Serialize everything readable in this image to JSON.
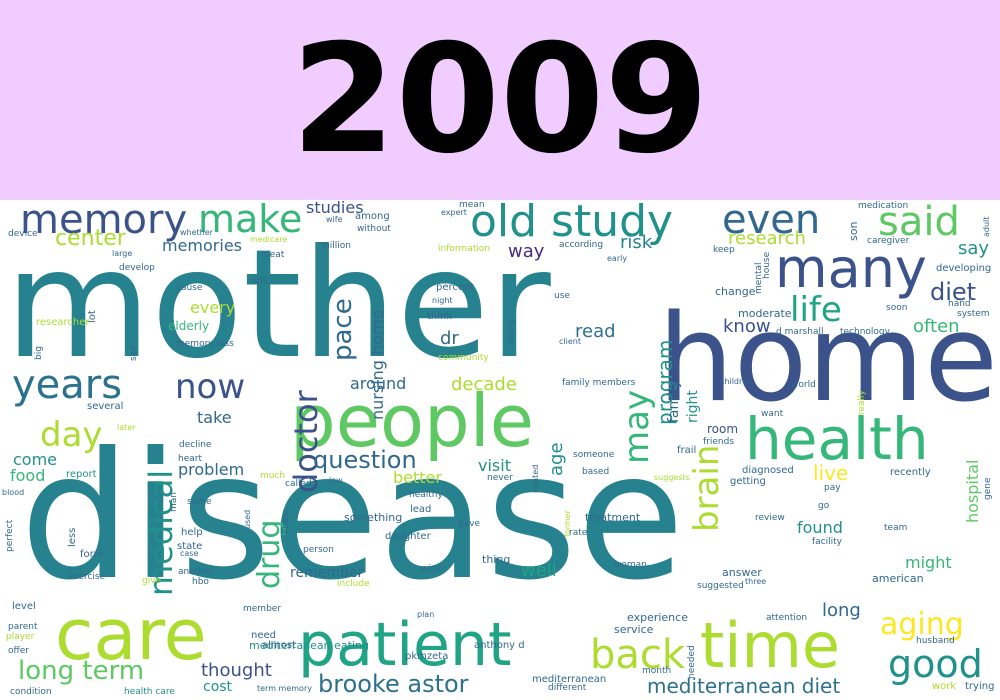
{
  "header": {
    "year": "2009",
    "background": "#f0ccff"
  },
  "words": [
    {
      "text": "mother",
      "color": "#26828e"
    },
    {
      "text": "disease",
      "color": "#26828e"
    },
    {
      "text": "home",
      "color": "#3b528b"
    },
    {
      "text": "people",
      "color": "#5ec962"
    },
    {
      "text": "care",
      "color": "#addc30"
    },
    {
      "text": "patient",
      "color": "#20a486"
    },
    {
      "text": "time",
      "color": "#addc30"
    },
    {
      "text": "health",
      "color": "#35b779"
    },
    {
      "text": "many",
      "color": "#3b528b"
    },
    {
      "text": "old study",
      "color": "#21918c"
    },
    {
      "text": "even",
      "color": "#31688e"
    },
    {
      "text": "said",
      "color": "#5ec962"
    },
    {
      "text": "memory",
      "color": "#3b528b"
    },
    {
      "text": "make",
      "color": "#35b779"
    },
    {
      "text": "years",
      "color": "#2c728e"
    },
    {
      "text": "now",
      "color": "#3b528b"
    },
    {
      "text": "day",
      "color": "#addc30"
    },
    {
      "text": "medical",
      "color": "#21918c"
    },
    {
      "text": "doctor",
      "color": "#3b528b"
    },
    {
      "text": "drug",
      "color": "#35b779"
    },
    {
      "text": "brain",
      "color": "#addc30"
    },
    {
      "text": "back",
      "color": "#addc30"
    },
    {
      "text": "good",
      "color": "#21918c"
    },
    {
      "text": "aging",
      "color": "#fde725"
    },
    {
      "text": "life",
      "color": "#20a486"
    },
    {
      "text": "diet",
      "color": "#3b528b"
    },
    {
      "text": "question",
      "color": "#31688e"
    },
    {
      "text": "brooke astor",
      "color": "#2c728e"
    },
    {
      "text": "long term",
      "color": "#5ec962"
    },
    {
      "text": "mediterranean diet",
      "color": "#2c728e"
    },
    {
      "text": "center",
      "color": "#addc30"
    },
    {
      "text": "memories",
      "color": "#31688e"
    },
    {
      "text": "studies",
      "color": "#3b528b"
    },
    {
      "text": "may",
      "color": "#35b779"
    },
    {
      "text": "program",
      "color": "#21918c"
    },
    {
      "text": "pace",
      "color": "#31688e"
    },
    {
      "text": "nursing home",
      "color": "#31688e"
    },
    {
      "text": "research",
      "color": "#addc30"
    },
    {
      "text": "say",
      "color": "#21918c"
    },
    {
      "text": "often",
      "color": "#35b779"
    },
    {
      "text": "know",
      "color": "#3b528b"
    },
    {
      "text": "risk",
      "color": "#26828e"
    },
    {
      "text": "way",
      "color": "#472d7b"
    },
    {
      "text": "read",
      "color": "#2c728e"
    },
    {
      "text": "dr",
      "color": "#31688e"
    },
    {
      "text": "decade",
      "color": "#addc30"
    },
    {
      "text": "around",
      "color": "#31688e"
    },
    {
      "text": "every",
      "color": "#addc30"
    },
    {
      "text": "elderly",
      "color": "#35b779"
    },
    {
      "text": "take",
      "color": "#31688e"
    },
    {
      "text": "come",
      "color": "#21918c"
    },
    {
      "text": "food",
      "color": "#35b779"
    },
    {
      "text": "problem",
      "color": "#31688e"
    },
    {
      "text": "visit",
      "color": "#21918c"
    },
    {
      "text": "age",
      "color": "#21918c"
    },
    {
      "text": "better",
      "color": "#addc30"
    },
    {
      "text": "live",
      "color": "#fde725"
    },
    {
      "text": "found",
      "color": "#21918c"
    },
    {
      "text": "might",
      "color": "#35b779"
    },
    {
      "text": "hospital",
      "color": "#5ec962"
    },
    {
      "text": "family",
      "color": "#31688e"
    },
    {
      "text": "right",
      "color": "#21918c"
    },
    {
      "text": "room",
      "color": "#3b528b"
    },
    {
      "text": "well",
      "color": "#20a486"
    },
    {
      "text": "remember",
      "color": "#31688e"
    },
    {
      "text": "thought",
      "color": "#3b528b"
    },
    {
      "text": "cost",
      "color": "#21918c"
    },
    {
      "text": "long",
      "color": "#31688e"
    },
    {
      "text": "mediterranean eating",
      "color": "#21918c"
    },
    {
      "text": "pkmzeta",
      "color": "#31688e"
    },
    {
      "text": "experience",
      "color": "#31688e"
    },
    {
      "text": "service",
      "color": "#31688e"
    },
    {
      "text": "answer",
      "color": "#31688e"
    },
    {
      "text": "american",
      "color": "#31688e"
    },
    {
      "text": "recently",
      "color": "#31688e"
    },
    {
      "text": "diagnosed",
      "color": "#31688e"
    },
    {
      "text": "treatment",
      "color": "#31688e"
    },
    {
      "text": "something",
      "color": "#31688e"
    },
    {
      "text": "daughter",
      "color": "#31688e"
    },
    {
      "text": "thing",
      "color": "#31688e"
    },
    {
      "text": "lead",
      "color": "#31688e"
    },
    {
      "text": "healthy",
      "color": "#31688e"
    },
    {
      "text": "report",
      "color": "#21918c"
    },
    {
      "text": "help",
      "color": "#31688e"
    },
    {
      "text": "state",
      "color": "#31688e"
    },
    {
      "text": "form",
      "color": "#31688e"
    },
    {
      "text": "exercise",
      "color": "#31688e"
    },
    {
      "text": "another",
      "color": "#31688e"
    },
    {
      "text": "hbo",
      "color": "#31688e"
    },
    {
      "text": "give",
      "color": "#addc30"
    },
    {
      "text": "include",
      "color": "#addc30"
    },
    {
      "text": "wine",
      "color": "#31688e"
    },
    {
      "text": "woman",
      "color": "#31688e"
    },
    {
      "text": "need",
      "color": "#31688e"
    },
    {
      "text": "almost",
      "color": "#31688e"
    },
    {
      "text": "anthony d",
      "color": "#31688e"
    },
    {
      "text": "mediterranean",
      "color": "#31688e"
    },
    {
      "text": "different",
      "color": "#31688e"
    },
    {
      "text": "month",
      "color": "#31688e"
    },
    {
      "text": "needed",
      "color": "#31688e"
    },
    {
      "text": "husband",
      "color": "#31688e"
    },
    {
      "text": "work",
      "color": "#addc30"
    },
    {
      "text": "trying",
      "color": "#31688e"
    },
    {
      "text": "term memory",
      "color": "#31688e"
    },
    {
      "text": "health care",
      "color": "#21918c"
    },
    {
      "text": "condition",
      "color": "#31688e"
    },
    {
      "text": "offer",
      "color": "#31688e"
    },
    {
      "text": "player",
      "color": "#addc30"
    },
    {
      "text": "parent",
      "color": "#31688e"
    },
    {
      "text": "level",
      "color": "#31688e"
    },
    {
      "text": "perfect",
      "color": "#31688e"
    },
    {
      "text": "less",
      "color": "#31688e"
    },
    {
      "text": "blood",
      "color": "#31688e"
    },
    {
      "text": "device",
      "color": "#31688e"
    },
    {
      "text": "large",
      "color": "#31688e"
    },
    {
      "text": "develop",
      "color": "#31688e"
    },
    {
      "text": "medicare",
      "color": "#addc30"
    },
    {
      "text": "meat",
      "color": "#31688e"
    },
    {
      "text": "million",
      "color": "#31688e"
    },
    {
      "text": "among",
      "color": "#31688e"
    },
    {
      "text": "without",
      "color": "#31688e"
    },
    {
      "text": "wife",
      "color": "#31688e"
    },
    {
      "text": "expert",
      "color": "#31688e"
    },
    {
      "text": "mean",
      "color": "#31688e"
    },
    {
      "text": "information",
      "color": "#addc30"
    },
    {
      "text": "according",
      "color": "#31688e"
    },
    {
      "text": "early",
      "color": "#31688e"
    },
    {
      "text": "medication",
      "color": "#31688e"
    },
    {
      "text": "son",
      "color": "#31688e"
    },
    {
      "text": "caregiver",
      "color": "#31688e"
    },
    {
      "text": "adult",
      "color": "#31688e"
    },
    {
      "text": "developing",
      "color": "#31688e"
    },
    {
      "text": "hand",
      "color": "#31688e"
    },
    {
      "text": "system",
      "color": "#31688e"
    },
    {
      "text": "soon",
      "color": "#31688e"
    },
    {
      "text": "technology",
      "color": "#31688e"
    },
    {
      "text": "d marshall",
      "color": "#31688e"
    },
    {
      "text": "moderate",
      "color": "#31688e"
    },
    {
      "text": "change",
      "color": "#31688e"
    },
    {
      "text": "mental",
      "color": "#31688e"
    },
    {
      "text": "house",
      "color": "#31688e"
    },
    {
      "text": "use",
      "color": "#31688e"
    },
    {
      "text": "percent",
      "color": "#31688e"
    },
    {
      "text": "think",
      "color": "#31688e"
    },
    {
      "text": "night",
      "color": "#31688e"
    },
    {
      "text": "community",
      "color": "#addc30"
    },
    {
      "text": "living",
      "color": "#31688e"
    },
    {
      "text": "client",
      "color": "#31688e"
    },
    {
      "text": "family members",
      "color": "#31688e"
    },
    {
      "text": "someone",
      "color": "#31688e"
    },
    {
      "text": "children",
      "color": "#31688e"
    },
    {
      "text": "world",
      "color": "#31688e"
    },
    {
      "text": "want",
      "color": "#31688e"
    },
    {
      "text": "really",
      "color": "#addc30"
    },
    {
      "text": "friends",
      "color": "#31688e"
    },
    {
      "text": "frail",
      "color": "#31688e"
    },
    {
      "text": "getting",
      "color": "#31688e"
    },
    {
      "text": "pay",
      "color": "#31688e"
    },
    {
      "text": "go",
      "color": "#31688e"
    },
    {
      "text": "gene",
      "color": "#31688e"
    },
    {
      "text": "review",
      "color": "#31688e"
    },
    {
      "text": "facility",
      "color": "#31688e"
    },
    {
      "text": "team",
      "color": "#31688e"
    },
    {
      "text": "three",
      "color": "#31688e"
    },
    {
      "text": "attention",
      "color": "#31688e"
    },
    {
      "text": "suggested",
      "color": "#31688e"
    },
    {
      "text": "suggests",
      "color": "#addc30"
    },
    {
      "text": "based",
      "color": "#31688e"
    },
    {
      "text": "related",
      "color": "#31688e"
    },
    {
      "text": "never",
      "color": "#31688e"
    },
    {
      "text": "low",
      "color": "#31688e"
    },
    {
      "text": "called",
      "color": "#31688e"
    },
    {
      "text": "much",
      "color": "#addc30"
    },
    {
      "text": "knew",
      "color": "#31688e"
    },
    {
      "text": "used",
      "color": "#31688e"
    },
    {
      "text": "person",
      "color": "#31688e"
    },
    {
      "text": "case",
      "color": "#31688e"
    },
    {
      "text": "gave",
      "color": "#31688e"
    },
    {
      "text": "former",
      "color": "#addc30"
    },
    {
      "text": "rate",
      "color": "#31688e"
    },
    {
      "text": "plan",
      "color": "#31688e"
    },
    {
      "text": "member",
      "color": "#31688e"
    },
    {
      "text": "same",
      "color": "#31688e"
    },
    {
      "text": "heart",
      "color": "#31688e"
    },
    {
      "text": "decline",
      "color": "#31688e"
    },
    {
      "text": "man",
      "color": "#31688e"
    },
    {
      "text": "later",
      "color": "#addc30"
    },
    {
      "text": "several",
      "color": "#31688e"
    },
    {
      "text": "big",
      "color": "#31688e"
    },
    {
      "text": "researcher",
      "color": "#addc30"
    },
    {
      "text": "lot",
      "color": "#31688e"
    },
    {
      "text": "see",
      "color": "#31688e"
    },
    {
      "text": "memory loss",
      "color": "#31688e"
    },
    {
      "text": "cause",
      "color": "#31688e"
    },
    {
      "text": "still",
      "color": "#31688e"
    },
    {
      "text": "whether",
      "color": "#31688e"
    },
    {
      "text": "keep",
      "color": "#31688e"
    },
    {
      "text": "u",
      "color": "#31688e"
    },
    {
      "text": "t",
      "color": "#31688e"
    }
  ]
}
